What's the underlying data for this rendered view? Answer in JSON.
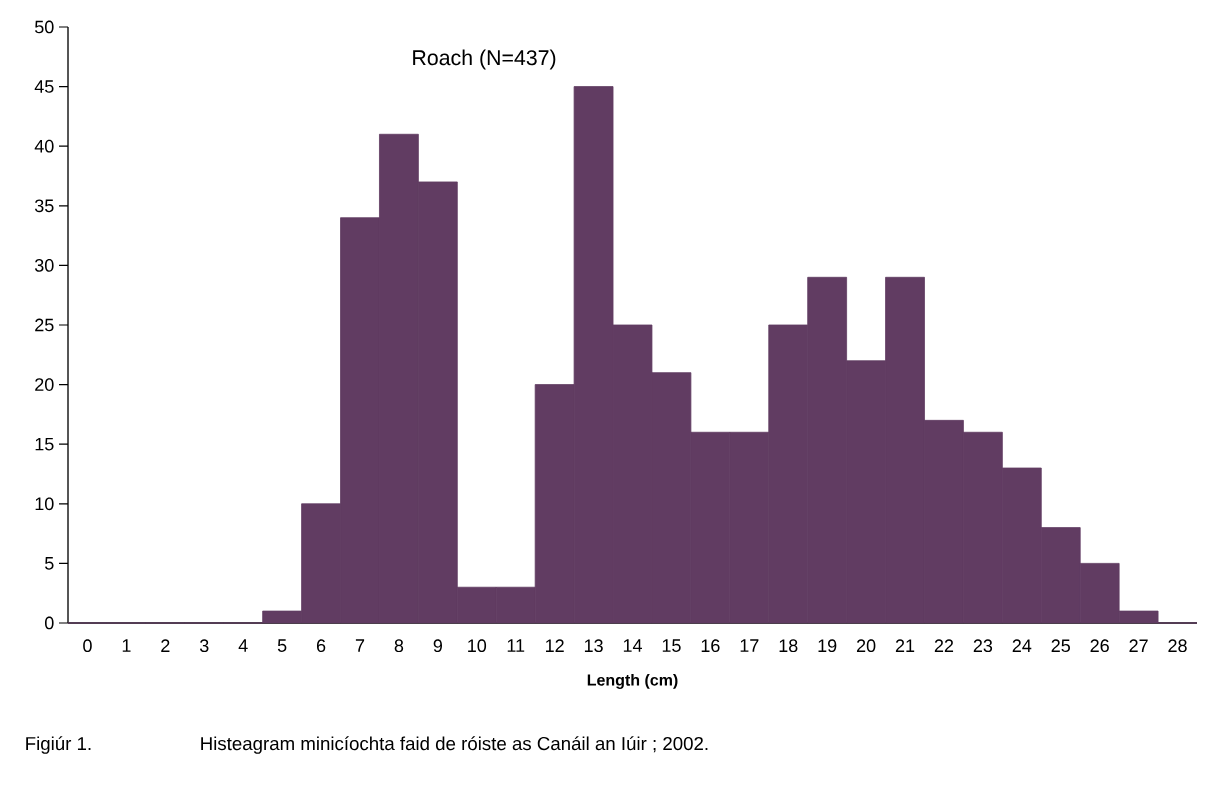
{
  "chart_data": {
    "type": "bar",
    "title": "Histeagram minicíochta faid de róiste as Canáil an Iúir ; 2002.",
    "xlabel": "Length (cm)",
    "annotations": [
      "Roach (N=437)",
      "Figiúr 1."
    ],
    "categories": [
      "0",
      "1",
      "2",
      "3",
      "4",
      "5",
      "6",
      "7",
      "8",
      "9",
      "10",
      "11",
      "12",
      "13",
      "14",
      "15",
      "16",
      "17",
      "18",
      "19",
      "20",
      "21",
      "22",
      "23",
      "24",
      "25",
      "26",
      "27",
      "28"
    ],
    "values": [
      0,
      0,
      0,
      0,
      0,
      1,
      10,
      34,
      41,
      37,
      3,
      3,
      20,
      45,
      25,
      21,
      16,
      16,
      25,
      29,
      22,
      29,
      17,
      16,
      13,
      8,
      5,
      1,
      0
    ],
    "color": "#613c62",
    "ylim": [
      0,
      50
    ],
    "yticks": [
      0,
      5,
      10,
      15,
      20,
      25,
      30,
      35,
      40,
      45,
      50
    ]
  }
}
